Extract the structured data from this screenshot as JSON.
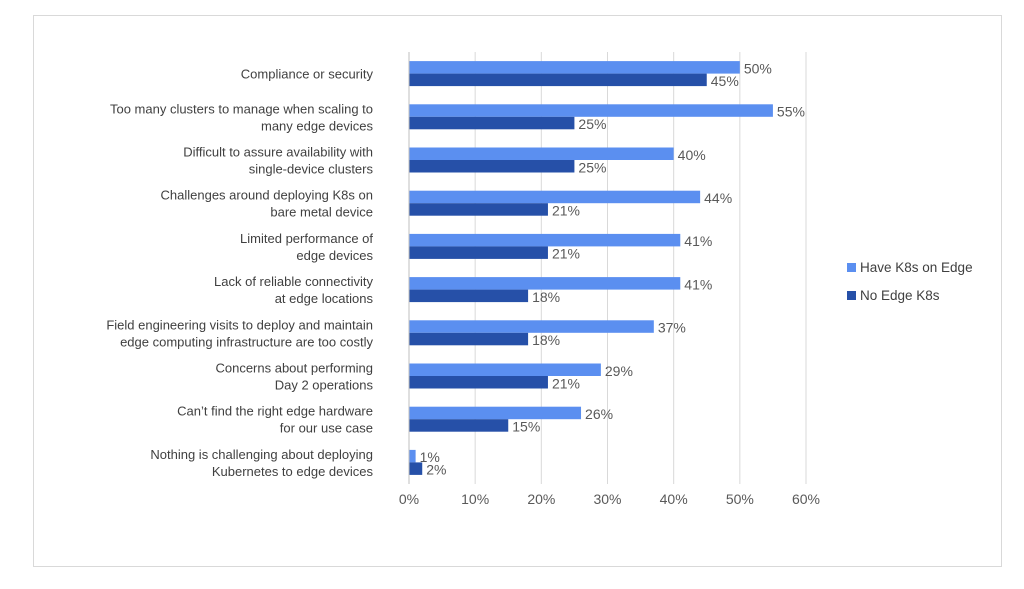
{
  "chart_data": {
    "type": "bar",
    "orientation": "horizontal",
    "categories": [
      [
        "Compliance or security"
      ],
      [
        "Too many clusters to manage when scaling to",
        "many edge devices"
      ],
      [
        "Difficult to assure availability with",
        "single-device clusters"
      ],
      [
        "Challenges around deploying K8s on",
        "bare metal device"
      ],
      [
        "Limited performance of",
        "edge devices"
      ],
      [
        "Lack of reliable connectivity",
        "at edge locations"
      ],
      [
        "Field engineering visits to deploy and maintain",
        "edge computing infrastructure are too costly"
      ],
      [
        "Concerns about performing",
        "Day 2 operations"
      ],
      [
        "Can’t find the right edge hardware",
        "for our use case"
      ],
      [
        "Nothing is challenging about deploying",
        "Kubernetes to edge devices"
      ]
    ],
    "series": [
      {
        "name": "Have K8s on Edge",
        "color": "#5b8ff0",
        "values": [
          50,
          55,
          40,
          44,
          41,
          41,
          37,
          29,
          26,
          1
        ],
        "labels": [
          "50%",
          "55%",
          "40%",
          "44%",
          "41%",
          "41%",
          "37%",
          "29%",
          "26%",
          "1%"
        ]
      },
      {
        "name": "No Edge K8s",
        "color": "#2650a8",
        "values": [
          45,
          25,
          25,
          21,
          21,
          18,
          18,
          21,
          15,
          2
        ],
        "labels": [
          "45%",
          "25%",
          "25%",
          "21%",
          "21%",
          "18%",
          "18%",
          "21%",
          "15%",
          "2%"
        ]
      }
    ],
    "xlim": [
      0,
      60
    ],
    "xticks": [
      "0%",
      "10%",
      "20%",
      "30%",
      "40%",
      "50%",
      "60%"
    ],
    "grid": true,
    "legend_position": "right",
    "title": "",
    "xlabel": "",
    "ylabel": ""
  }
}
